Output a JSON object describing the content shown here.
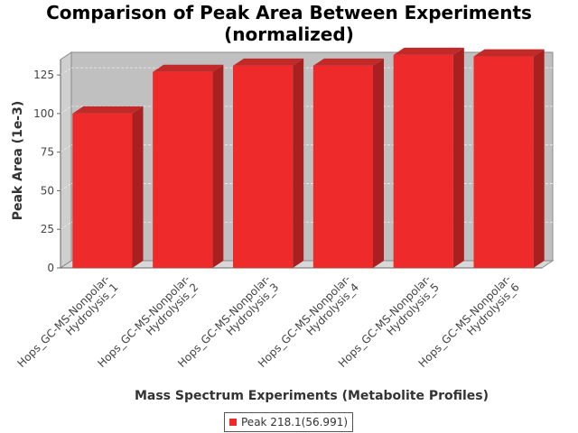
{
  "chart_data": {
    "type": "bar",
    "title": "Comparison of Peak Area Between Experiments (normalized)",
    "xlabel": "Mass Spectrum Experiments (Metabolite Profiles)",
    "ylabel": "Peak Area (1e-3)",
    "ylim": [
      0,
      135
    ],
    "yticks": [
      0,
      25,
      50,
      75,
      100,
      125
    ],
    "grid": true,
    "legend_position": "bottom",
    "categories": [
      "Hops_GC-MS-Nonpolar-Hydrolysis_1",
      "Hops_GC-MS-Nonpolar-Hydrolysis_2",
      "Hops_GC-MS-Nonpolar-Hydrolysis_3",
      "Hops_GC-MS-Nonpolar-Hydrolysis_4",
      "Hops_GC-MS-Nonpolar-Hydrolysis_5",
      "Hops_GC-MS-Nonpolar-Hydrolysis_6"
    ],
    "category_lines": [
      [
        "Hops_GC-MS-Nonpolar-",
        "Hydrolysis_1"
      ],
      [
        "Hops_GC-MS-Nonpolar-",
        "Hydrolysis_2"
      ],
      [
        "Hops_GC-MS-Nonpolar-",
        "Hydrolysis_3"
      ],
      [
        "Hops_GC-MS-Nonpolar-",
        "Hydrolysis_4"
      ],
      [
        "Hops_GC-MS-Nonpolar-",
        "Hydrolysis_5"
      ],
      [
        "Hops_GC-MS-Nonpolar-",
        "Hydrolysis_6"
      ]
    ],
    "series": [
      {
        "name": "Peak 218.1(56.991)",
        "color": "#ee2a2a",
        "values": [
          100,
          127,
          131,
          131,
          138,
          137
        ]
      }
    ]
  }
}
